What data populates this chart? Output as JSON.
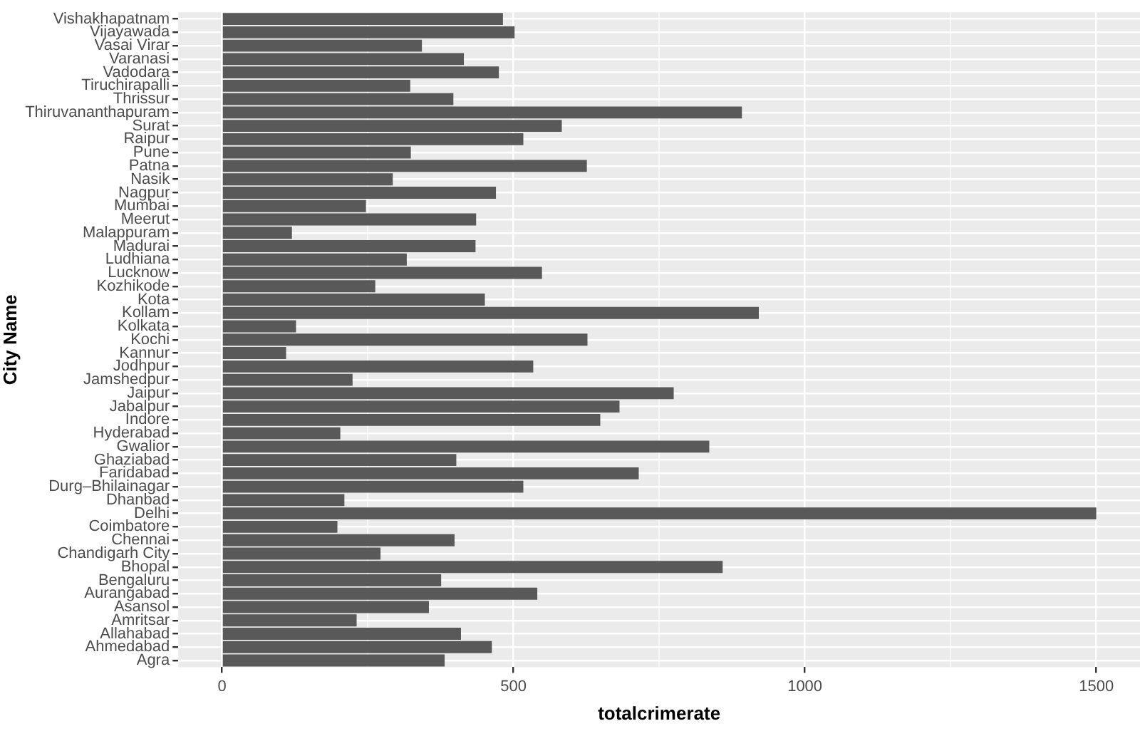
{
  "chart_data": {
    "type": "bar",
    "orientation": "horizontal",
    "xlabel": "totalcrimerate",
    "ylabel": "City Name",
    "categories": [
      "Vishakhapatnam",
      "Vijayawada",
      "Vasai Virar",
      "Varanasi",
      "Vadodara",
      "Tiruchirapalli",
      "Thrissur",
      "Thiruvananthapuram",
      "Surat",
      "Raipur",
      "Pune",
      "Patna",
      "Nasik",
      "Nagpur",
      "Mumbai",
      "Meerut",
      "Malappuram",
      "Madurai",
      "Ludhiana",
      "Lucknow",
      "Kozhikode",
      "Kota",
      "Kollam",
      "Kolkata",
      "Kochi",
      "Kannur",
      "Jodhpur",
      "Jamshedpur",
      "Jaipur",
      "Jabalpur",
      "Indore",
      "Hyderabad",
      "Gwalior",
      "Ghaziabad",
      "Faridabad",
      "Durg–Bhilainagar",
      "Dhanbad",
      "Delhi",
      "Coimbatore",
      "Chennai",
      "Chandigarh City",
      "Bhopal",
      "Bengaluru",
      "Aurangabad",
      "Asansol",
      "Amritsar",
      "Allahabad",
      "Ahmedabad",
      "Agra"
    ],
    "values": [
      482,
      502,
      343,
      415,
      475,
      323,
      397,
      892,
      583,
      517,
      324,
      626,
      293,
      470,
      247,
      436,
      120,
      435,
      317,
      549,
      263,
      451,
      921,
      127,
      627,
      110,
      534,
      224,
      775,
      682,
      649,
      203,
      836,
      402,
      715,
      517,
      210,
      1500,
      198,
      399,
      272,
      859,
      376,
      541,
      355,
      231,
      410,
      463,
      382
    ],
    "color": "#595959",
    "xlim": [
      -75,
      1575
    ],
    "xticks": [
      0,
      {
        "value": 250,
        "label": null
      },
      500,
      {
        "value": 750,
        "label": null
      },
      1000,
      {
        "value": 1250,
        "label": null
      },
      1500
    ],
    "grid": true,
    "legend": false
  }
}
